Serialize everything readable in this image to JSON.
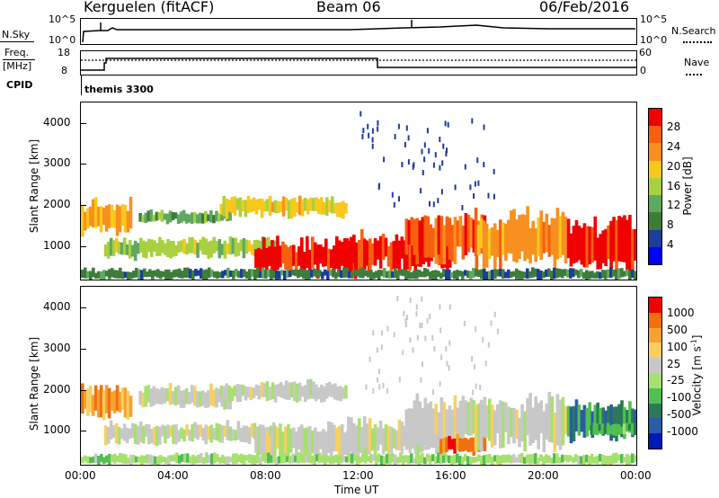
{
  "header": {
    "station": "Kerguelen (fitACF)",
    "beam": "Beam 06",
    "date": "06/Feb/2016"
  },
  "nsky": {
    "left_label": "N.Sky",
    "left_ticks": [
      "10^5",
      "10^0"
    ],
    "right_label": "N.Search",
    "right_ticks": [
      "10^5",
      "10^0"
    ]
  },
  "freq": {
    "left_label_1": "Freq.",
    "left_label_2": "[MHz]",
    "left_ticks": [
      "18",
      "8"
    ],
    "right_label": "Nave",
    "right_ticks": [
      "60",
      "0"
    ]
  },
  "cpid": {
    "label": "CPID",
    "value": "themis 3300"
  },
  "colors": {
    "power": [
      "#0000ff",
      "#1e3c9c",
      "#3c7d3c",
      "#5fa85f",
      "#a8d040",
      "#f8c81c",
      "#f89020",
      "#f86010",
      "#f00000"
    ],
    "velocity": [
      "#0018b8",
      "#2a5aa8",
      "#2a7a5a",
      "#50c050",
      "#a8e070",
      "#c8c8c8",
      "#f8d060",
      "#f8a030",
      "#f07010",
      "#f00000"
    ]
  },
  "chart_data": [
    {
      "type": "heatmap",
      "title": "",
      "ylabel": "Slant Range [km]",
      "xlabel": "",
      "ylim": [
        180,
        4500
      ],
      "y_ticks": [
        "1000",
        "2000",
        "3000",
        "4000"
      ],
      "x_ticks": [
        "00:00",
        "04:00",
        "08:00",
        "12:00",
        "16:00",
        "20:00",
        "00:00"
      ],
      "colorbar_label": "Power [dB]",
      "colorbar_ticks": [
        "28",
        "24",
        "20",
        "16",
        "12",
        "8",
        "4"
      ],
      "bands": [
        {
          "t0": 0.0,
          "t1": 2.2,
          "r0": 1300,
          "r1": 2100,
          "level": 6
        },
        {
          "t0": 2.5,
          "t1": 6.5,
          "r0": 1550,
          "r1": 1850,
          "level": 3
        },
        {
          "t0": 6.0,
          "t1": 11.5,
          "r0": 1700,
          "r1": 2200,
          "level": 5
        },
        {
          "t0": 1.0,
          "t1": 8.5,
          "r0": 700,
          "r1": 1200,
          "level": 4
        },
        {
          "t0": 7.5,
          "t1": 12.5,
          "r0": 300,
          "r1": 1150,
          "level": 8
        },
        {
          "t0": 11.5,
          "t1": 16.0,
          "r0": 400,
          "r1": 1300,
          "level": 8
        },
        {
          "t0": 14.0,
          "t1": 17.5,
          "r0": 600,
          "r1": 1800,
          "level": 7
        },
        {
          "t0": 17.0,
          "t1": 21.0,
          "r0": 500,
          "r1": 1800,
          "level": 6
        },
        {
          "t0": 21.0,
          "t1": 24.0,
          "r0": 300,
          "r1": 1700,
          "level": 8
        },
        {
          "t0": 0.0,
          "t1": 24.0,
          "r0": 180,
          "r1": 450,
          "level": 2
        }
      ]
    },
    {
      "type": "heatmap",
      "title": "",
      "ylabel": "Slant Range [km]",
      "xlabel": "Time UT",
      "ylim": [
        180,
        4500
      ],
      "y_ticks": [
        "1000",
        "2000",
        "3000",
        "4000"
      ],
      "x_ticks": [
        "00:00",
        "04:00",
        "08:00",
        "12:00",
        "16:00",
        "20:00",
        "00:00"
      ],
      "colorbar_label": "Velocity [m s^-1]",
      "colorbar_ticks": [
        "1000",
        "500",
        "100",
        "25",
        "-25",
        "-100",
        "-500",
        "-1000"
      ],
      "bands": [
        {
          "t0": 0.0,
          "t1": 2.2,
          "r0": 1300,
          "r1": 2100,
          "level": 7
        },
        {
          "t0": 2.5,
          "t1": 6.5,
          "r0": 1550,
          "r1": 2100,
          "level": 5
        },
        {
          "t0": 6.0,
          "t1": 11.5,
          "r0": 1700,
          "r1": 2200,
          "level": 5
        },
        {
          "t0": 1.0,
          "t1": 8.5,
          "r0": 700,
          "r1": 1200,
          "level": 5
        },
        {
          "t0": 7.5,
          "t1": 12.5,
          "r0": 300,
          "r1": 1150,
          "level": 5
        },
        {
          "t0": 11.5,
          "t1": 16.0,
          "r0": 400,
          "r1": 1300,
          "level": 5
        },
        {
          "t0": 14.0,
          "t1": 17.5,
          "r0": 600,
          "r1": 1800,
          "level": 5
        },
        {
          "t0": 15.5,
          "t1": 17.5,
          "r0": 450,
          "r1": 900,
          "level": 8
        },
        {
          "t0": 17.0,
          "t1": 21.0,
          "r0": 500,
          "r1": 1800,
          "level": 5
        },
        {
          "t0": 21.0,
          "t1": 24.0,
          "r0": 800,
          "r1": 1700,
          "level": 2
        },
        {
          "t0": 22.0,
          "t1": 24.0,
          "r0": 900,
          "r1": 1200,
          "level": 3
        },
        {
          "t0": 0.0,
          "t1": 24.0,
          "r0": 180,
          "r1": 450,
          "level": 4
        }
      ]
    }
  ]
}
